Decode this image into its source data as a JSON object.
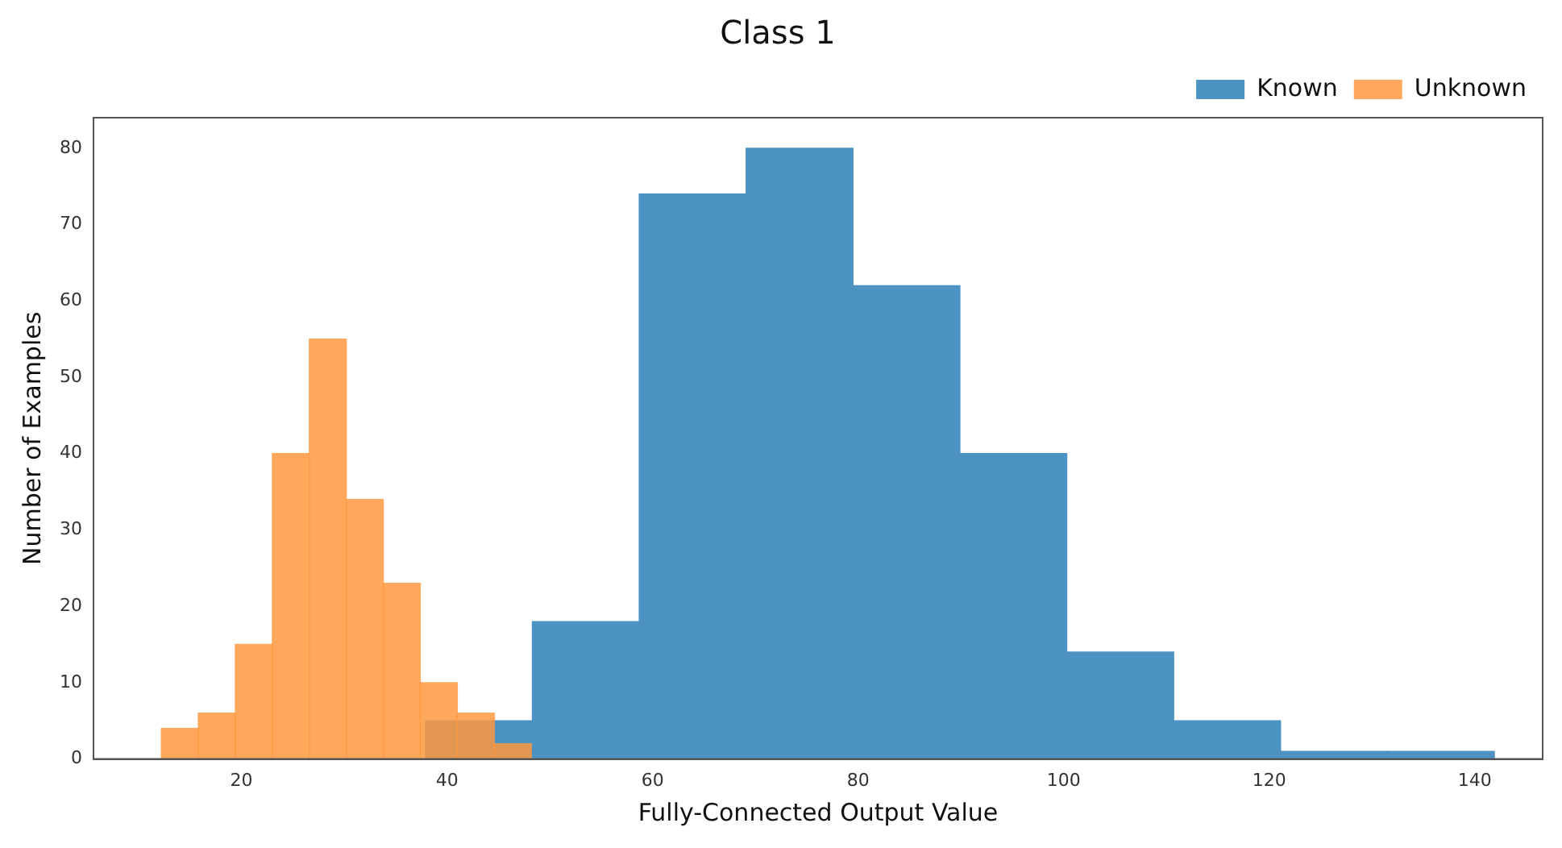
{
  "chart_data": {
    "type": "bar",
    "title": "Class 1",
    "xlabel": "Fully-Connected Output Value",
    "ylabel": "Number of Examples",
    "series": [
      {
        "name": "Known",
        "color": "#4c92c3",
        "x": [
          43.1,
          53.5,
          63.9,
          74.3,
          84.7,
          95.1,
          105.5,
          115.9,
          126.3,
          136.7
        ],
        "values": [
          5,
          18,
          74,
          80,
          62,
          40,
          14,
          5,
          1,
          1
        ]
      },
      {
        "name": "Unknown",
        "color": "#ff983e",
        "x": [
          14.0,
          17.6,
          21.2,
          24.8,
          28.4,
          32.0,
          35.6,
          39.2,
          42.8,
          46.4
        ],
        "values": [
          4,
          6,
          15,
          40,
          55,
          34,
          23,
          10,
          6,
          2
        ]
      }
    ],
    "xlim": [
      5.6,
      146.6
    ],
    "xticks": [
      20,
      40,
      60,
      80,
      100,
      120,
      140
    ],
    "ylim": [
      0,
      84
    ],
    "yticks": [
      0,
      10,
      20,
      30,
      40,
      50,
      60,
      70,
      80
    ],
    "legend": "top right"
  }
}
